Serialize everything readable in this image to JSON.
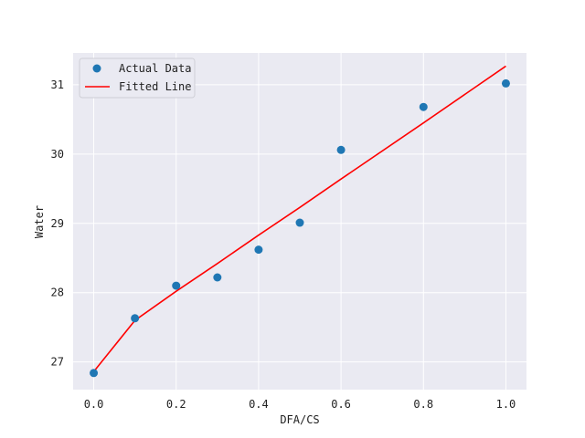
{
  "chart_data": {
    "type": "scatter",
    "title": "",
    "xlabel": "DFA/CS",
    "ylabel": "Water",
    "xlim": [
      -0.05,
      1.05
    ],
    "ylim": [
      26.6,
      31.46
    ],
    "x_ticks": [
      0.0,
      0.2,
      0.4,
      0.6,
      0.8,
      1.0
    ],
    "x_tick_labels": [
      "0.0",
      "0.2",
      "0.4",
      "0.6",
      "0.8",
      "1.0"
    ],
    "y_ticks": [
      27,
      28,
      29,
      30,
      31
    ],
    "y_tick_labels": [
      "27",
      "28",
      "29",
      "30",
      "31"
    ],
    "grid": true,
    "legend_position": "top-left",
    "series": [
      {
        "name": "Actual Data",
        "kind": "scatter",
        "color": "#1f77b4",
        "x": [
          0.0,
          0.1,
          0.2,
          0.3,
          0.4,
          0.5,
          0.6,
          0.8,
          1.0
        ],
        "y": [
          26.84,
          27.63,
          28.1,
          28.22,
          28.62,
          29.01,
          30.06,
          30.68,
          31.02
        ]
      },
      {
        "name": "Fitted Line",
        "kind": "line",
        "color": "#ff0000",
        "x": [
          0.0,
          0.1,
          0.2,
          0.3,
          0.4,
          0.5,
          0.6,
          0.8,
          1.0
        ],
        "y": [
          26.86,
          27.6,
          28.02,
          28.42,
          28.83,
          29.23,
          29.64,
          30.45,
          31.27
        ]
      }
    ]
  }
}
